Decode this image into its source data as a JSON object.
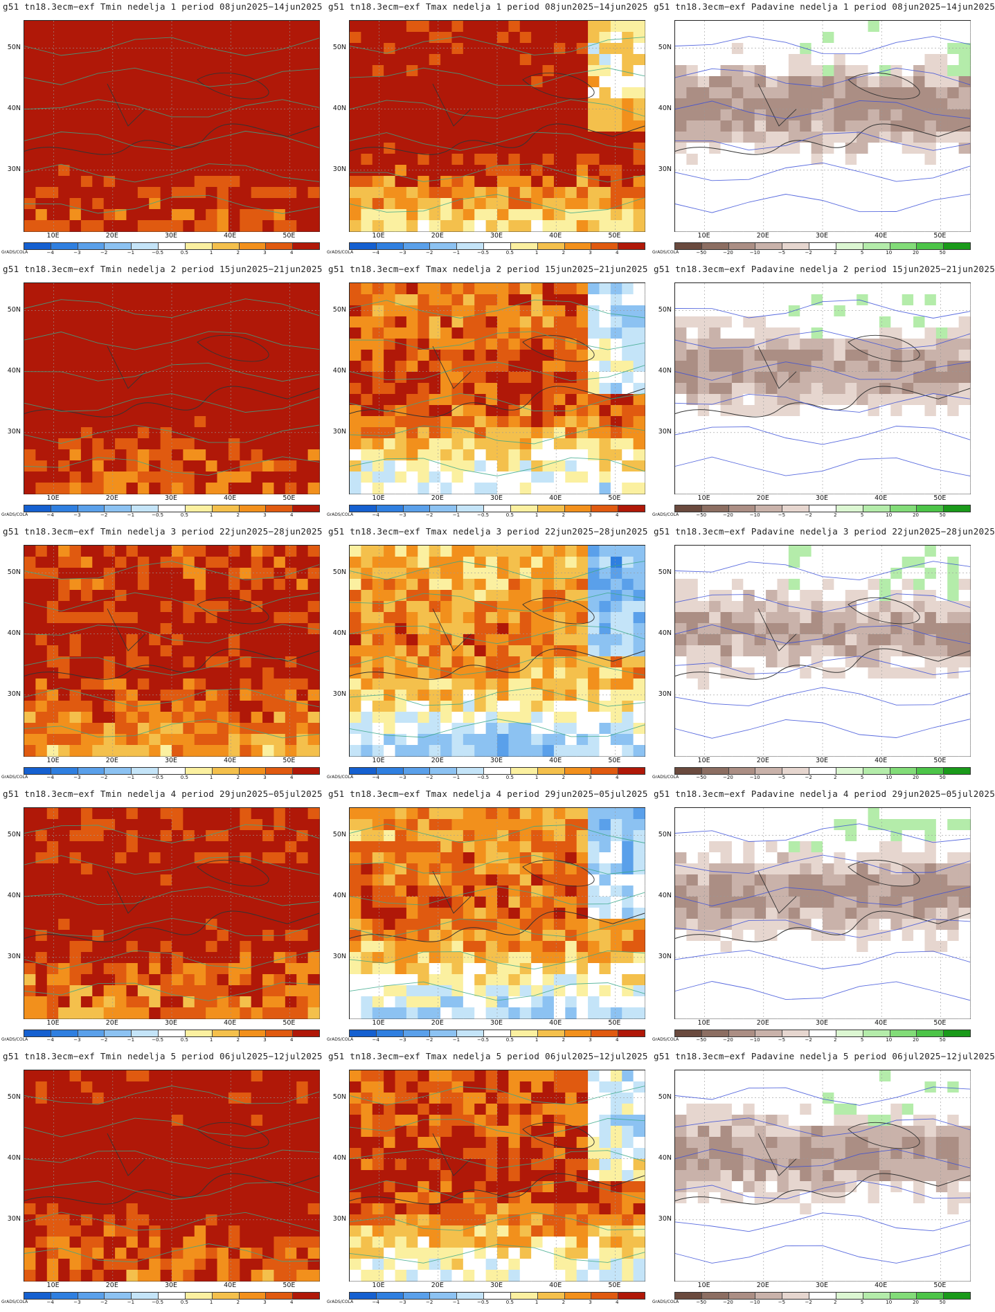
{
  "panels": [
    {
      "title": "g51  tn18.3ecm−exf Tmin nedelja 1 period 08jun2025−14jun2025",
      "variable": "tmin",
      "week": 1,
      "warmth": 0.85
    },
    {
      "title": "g51  tn18.3ecm−exf Tmax nedelja 1 period 08jun2025−14jun2025",
      "variable": "tmax",
      "week": 1,
      "warmth": 0.72
    },
    {
      "title": "g51  tn18.3ecm−exf Padavine nedelja 1 period 08jun2025−14jun2025",
      "variable": "precip",
      "week": 1,
      "warmth": 0.55
    },
    {
      "title": "g51  tn18.3ecm−exf Tmin nedelja 2 period 15jun2025−21jun2025",
      "variable": "tmin",
      "week": 2,
      "warmth": 0.8
    },
    {
      "title": "g51  tn18.3ecm−exf Tmax nedelja 2 period 15jun2025−21jun2025",
      "variable": "tmax",
      "week": 2,
      "warmth": 0.45
    },
    {
      "title": "g51  tn18.3ecm−exf Padavine nedelja 2 period 15jun2025−21jun2025",
      "variable": "precip",
      "week": 2,
      "warmth": 0.35
    },
    {
      "title": "g51  tn18.3ecm−exf Tmin nedelja 3 period 22jun2025−28jun2025",
      "variable": "tmin",
      "week": 3,
      "warmth": 0.62
    },
    {
      "title": "g51  tn18.3ecm−exf Tmax nedelja 3 period 22jun2025−28jun2025",
      "variable": "tmax",
      "week": 3,
      "warmth": 0.3
    },
    {
      "title": "g51  tn18.3ecm−exf Padavine nedelja 3 period 22jun2025−28jun2025",
      "variable": "precip",
      "week": 3,
      "warmth": 0.3
    },
    {
      "title": "g51  tn18.3ecm−exf Tmin nedelja 4 period 29jun2025−05jul2025",
      "variable": "tmin",
      "week": 4,
      "warmth": 0.68
    },
    {
      "title": "g51  tn18.3ecm−exf Tmax nedelja 4 period 29jun2025−05jul2025",
      "variable": "tmax",
      "week": 4,
      "warmth": 0.38
    },
    {
      "title": "g51  tn18.3ecm−exf Padavine nedelja 4 period 29jun2025−05jul2025",
      "variable": "precip",
      "week": 4,
      "warmth": 0.4
    },
    {
      "title": "g51  tn18.3ecm−exf Tmin nedelja 5 period 06jul2025−12jul2025",
      "variable": "tmin",
      "week": 5,
      "warmth": 0.75
    },
    {
      "title": "g51  tn18.3ecm−exf Tmax nedelja 5 period 06jul2025−12jul2025",
      "variable": "tmax",
      "week": 5,
      "warmth": 0.52
    },
    {
      "title": "g51  tn18.3ecm−exf Padavine nedelja 5 period 06jul2025−12jul2025",
      "variable": "precip",
      "week": 5,
      "warmth": 0.38
    }
  ],
  "axes": {
    "lat_labels": [
      "50N",
      "40N",
      "30N"
    ],
    "lon_labels": [
      "10E",
      "20E",
      "30E",
      "40E",
      "50E"
    ]
  },
  "brand_label": "GrADS/COLA",
  "temperature_scale": {
    "labels": [
      "−4",
      "−3",
      "−2",
      "−1",
      "−0.5",
      "0.5",
      "1",
      "2",
      "3",
      "4"
    ],
    "colors": [
      "#1560d0",
      "#2f7fe0",
      "#5aa0ea",
      "#8cc2f2",
      "#c4e4f8",
      "#ffffff",
      "#fbf0a0",
      "#f4c04c",
      "#f2901c",
      "#e05a10",
      "#b01808"
    ]
  },
  "precip_scale": {
    "labels": [
      "−50",
      "−20",
      "−10",
      "−5",
      "−2",
      "2",
      "5",
      "10",
      "20",
      "50"
    ],
    "colors": [
      "#6a4a3e",
      "#8c6e62",
      "#ab8e84",
      "#c9b2aa",
      "#e6d6cf",
      "#ffffff",
      "#dcf7d2",
      "#b4ecaa",
      "#82dc78",
      "#4cc448",
      "#1a9a1a"
    ]
  }
}
